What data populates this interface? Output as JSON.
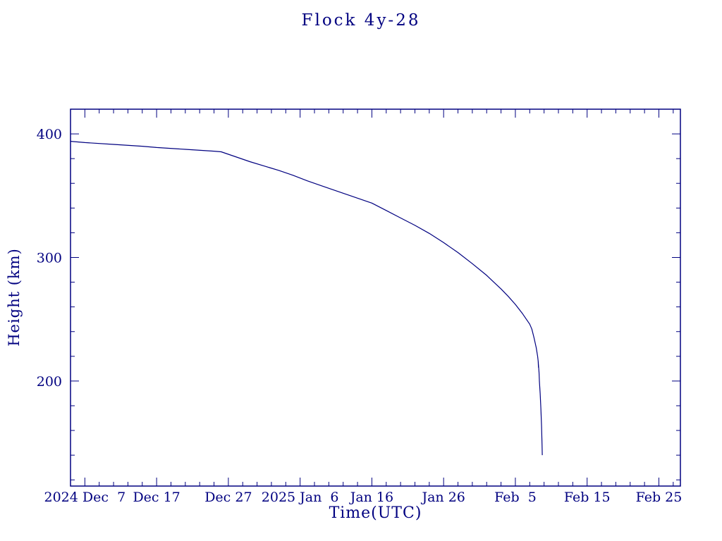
{
  "colors": {
    "accent": "#000080",
    "background": "#ffffff"
  },
  "chart_data": {
    "type": "line",
    "title": "Flock 4y-28",
    "xlabel": "Time(UTC)",
    "ylabel": "Height (km)",
    "x_domain_days": [
      0,
      85
    ],
    "x_domain_dates": [
      "2024-12-05",
      "2025-02-28"
    ],
    "ylim": [
      115,
      420
    ],
    "grid": false,
    "legend": "none",
    "x_minor_step_days": 2,
    "y_minor_step": 20,
    "x_major_ticks": [
      {
        "day": 2,
        "label": "2024 Dec  7"
      },
      {
        "day": 12,
        "label": "Dec 17"
      },
      {
        "day": 22,
        "label": "Dec 27"
      },
      {
        "day": 32,
        "label": "2025 Jan  6"
      },
      {
        "day": 42,
        "label": "Jan 16"
      },
      {
        "day": 52,
        "label": "Jan 26"
      },
      {
        "day": 62,
        "label": "Feb  5"
      },
      {
        "day": 72,
        "label": "Feb 15"
      },
      {
        "day": 82,
        "label": "Feb 25"
      }
    ],
    "y_major_ticks": [
      {
        "value": 200,
        "label": "200"
      },
      {
        "value": 300,
        "label": "300"
      },
      {
        "value": 400,
        "label": "400"
      }
    ],
    "series": [
      {
        "name": "orbital-height-km",
        "points": [
          [
            0,
            394
          ],
          [
            2,
            393
          ],
          [
            6,
            391.5
          ],
          [
            10,
            390
          ],
          [
            12,
            389
          ],
          [
            16,
            387.5
          ],
          [
            20,
            386
          ],
          [
            21,
            385.5
          ],
          [
            23,
            381.5
          ],
          [
            25,
            377.5
          ],
          [
            27,
            374
          ],
          [
            29,
            370.5
          ],
          [
            31,
            366.5
          ],
          [
            33,
            362
          ],
          [
            35,
            358
          ],
          [
            37,
            354
          ],
          [
            39,
            350
          ],
          [
            41,
            346
          ],
          [
            42,
            344
          ],
          [
            44,
            338
          ],
          [
            46,
            332
          ],
          [
            48,
            326
          ],
          [
            50,
            319.5
          ],
          [
            52,
            312
          ],
          [
            54,
            304
          ],
          [
            56,
            295
          ],
          [
            58,
            285.5
          ],
          [
            59,
            280
          ],
          [
            60,
            274.5
          ],
          [
            61,
            268.5
          ],
          [
            62,
            262
          ],
          [
            63,
            254.5
          ],
          [
            64,
            246
          ],
          [
            64.3,
            242
          ],
          [
            64.6,
            235
          ],
          [
            64.9,
            227
          ],
          [
            65.1,
            220
          ],
          [
            65.2,
            215
          ],
          [
            65.22,
            211
          ],
          [
            65.18,
            216
          ],
          [
            65.3,
            207
          ],
          [
            65.35,
            200
          ],
          [
            65.45,
            190
          ],
          [
            65.55,
            178
          ],
          [
            65.65,
            163
          ],
          [
            65.72,
            148
          ],
          [
            65.75,
            140
          ]
        ]
      }
    ]
  }
}
